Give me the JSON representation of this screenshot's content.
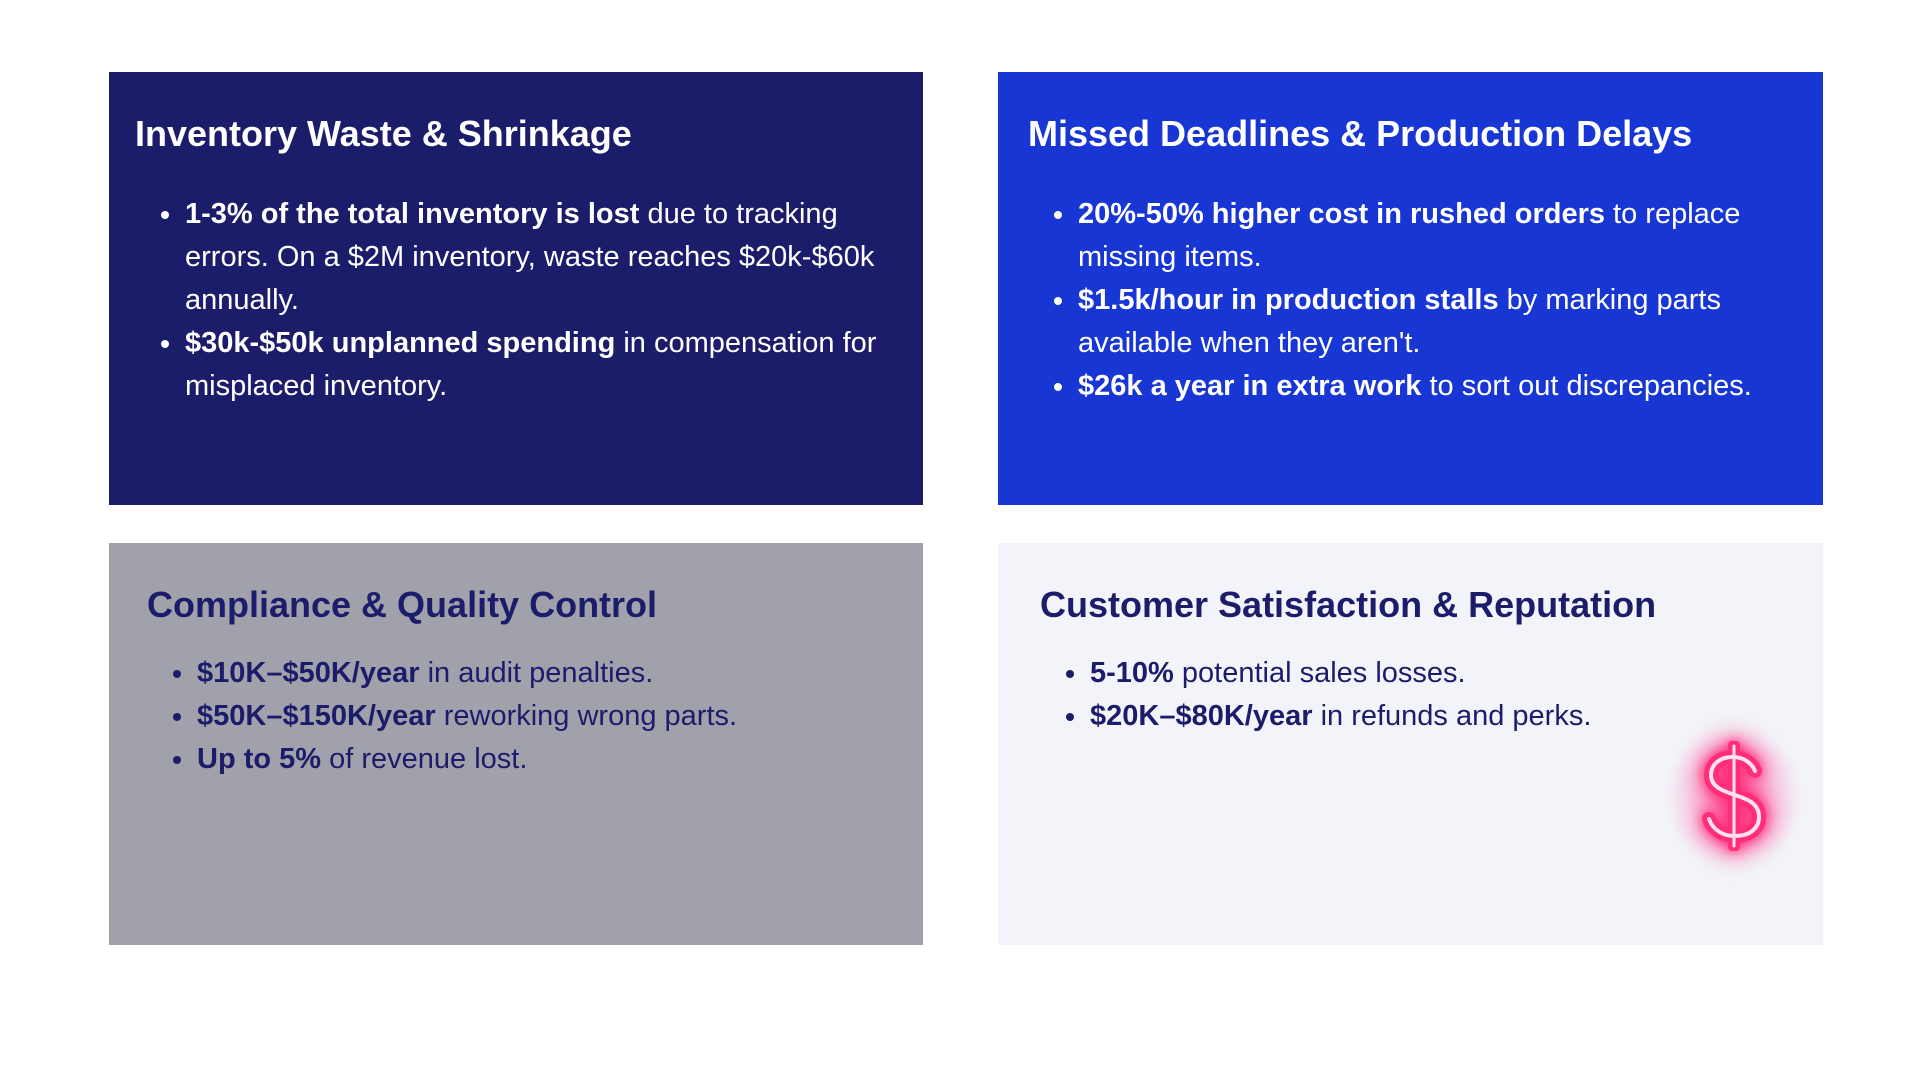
{
  "cards": [
    {
      "title": "Inventory Waste & Shrinkage",
      "bg": "#1c1d6a",
      "items": [
        {
          "bold": "1-3% of the total inventory is lost",
          "text": " due to tracking errors. On a $2M inventory, waste reaches $20k-$60k annually."
        },
        {
          "bold": "$30k-$50k  unplanned spending",
          "text": " in compensation for misplaced inventory."
        }
      ]
    },
    {
      "title": "Missed Deadlines & Production Delays",
      "bg": "#1836d4",
      "items": [
        {
          "bold": "20%-50% higher cost in rushed orders",
          "text": " to replace missing items."
        },
        {
          "bold": "$1.5k/hour in production stalls",
          "text": " by marking parts available when they aren't."
        },
        {
          "bold": "$26k a year in extra work",
          "text": " to sort out discrepancies."
        }
      ]
    },
    {
      "title": "Compliance & Quality Control",
      "bg": "#a1a1ab",
      "items": [
        {
          "bold": "$10K–$50K/year",
          "text": " in audit penalties."
        },
        {
          "bold": "$50K–$150K/year",
          "text": " reworking wrong parts."
        },
        {
          "bold": "Up to 5%",
          "text": " of revenue lost."
        }
      ]
    },
    {
      "title": "Customer Satisfaction & Reputation",
      "bg": "#f3f4fa",
      "items": [
        {
          "bold": "5-10%",
          "text": " potential sales losses."
        },
        {
          "bold": "$20K–$80K/year",
          "text": " in refunds and perks."
        }
      ]
    }
  ],
  "decoration": {
    "icon": "neon-dollar-icon",
    "color": "#ff2d7a"
  }
}
